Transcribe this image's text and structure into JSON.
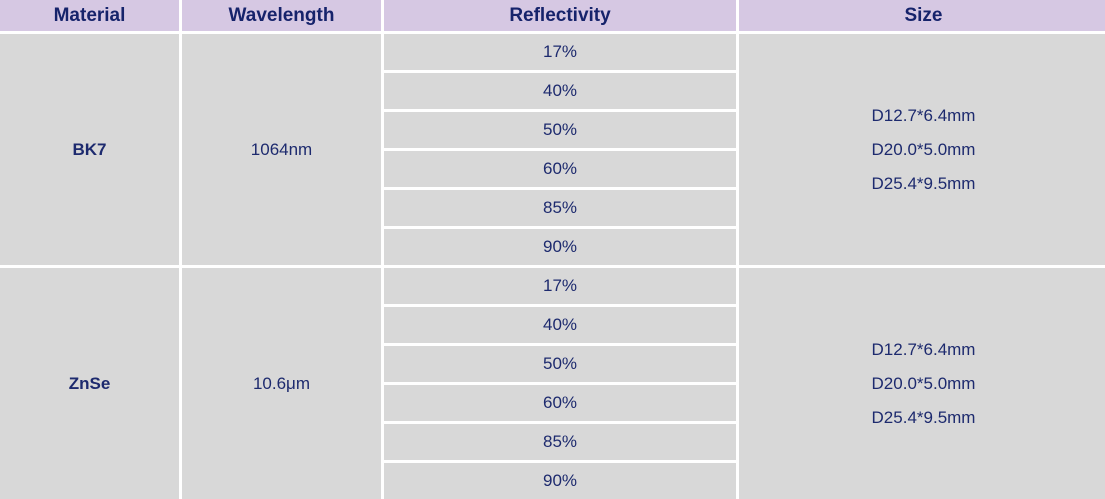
{
  "headers": [
    "Material",
    "Wavelength",
    "Reflectivity",
    "Size"
  ],
  "groups": [
    {
      "material": "BK7",
      "wavelength": "1064nm",
      "reflectivity": [
        "17%",
        "40%",
        "50%",
        "60%",
        "85%",
        "90%"
      ],
      "sizes": [
        "D12.7*6.4mm",
        "D20.0*5.0mm",
        "D25.4*9.5mm"
      ]
    },
    {
      "material": "ZnSe",
      "wavelength": "10.6μm",
      "reflectivity": [
        "17%",
        "40%",
        "50%",
        "60%",
        "85%",
        "90%"
      ],
      "sizes": [
        "D12.7*6.4mm",
        "D20.0*5.0mm",
        "D25.4*9.5mm"
      ]
    }
  ],
  "colors": {
    "header_bg": "#d6c8e3",
    "header_text": "#16236b",
    "cell_bg": "#d8d8d8",
    "cell_text": "#1d2a6e"
  }
}
